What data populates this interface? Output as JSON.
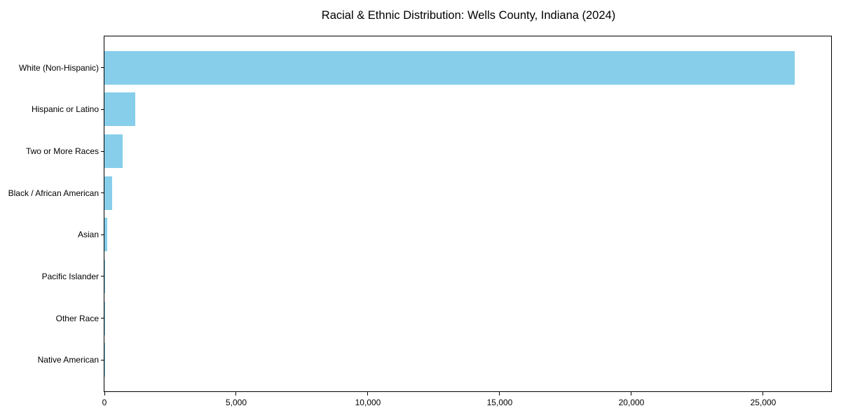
{
  "chart_data": {
    "type": "bar",
    "orientation": "horizontal",
    "title": "Racial & Ethnic Distribution: Wells County, Indiana (2024)",
    "categories": [
      "White (Non-Hispanic)",
      "Hispanic or Latino",
      "Two or More Races",
      "Black / African American",
      "Asian",
      "Pacific Islander",
      "Other Race",
      "Native American"
    ],
    "values": [
      26200,
      1160,
      700,
      285,
      110,
      25,
      15,
      10
    ],
    "xlabel": "",
    "ylabel": "",
    "xlim": [
      0,
      27580
    ],
    "xticks": [
      0,
      5000,
      10000,
      15000,
      20000,
      25000
    ],
    "xtick_labels": [
      "0",
      "5,000",
      "10,000",
      "15,000",
      "20,000",
      "25,000"
    ],
    "bar_color": "#87CEEB",
    "axis_color": "#000000",
    "text_color": "#000000",
    "background_color": "#ffffff",
    "grid": false,
    "legend": "none",
    "sort_order": "descending"
  }
}
